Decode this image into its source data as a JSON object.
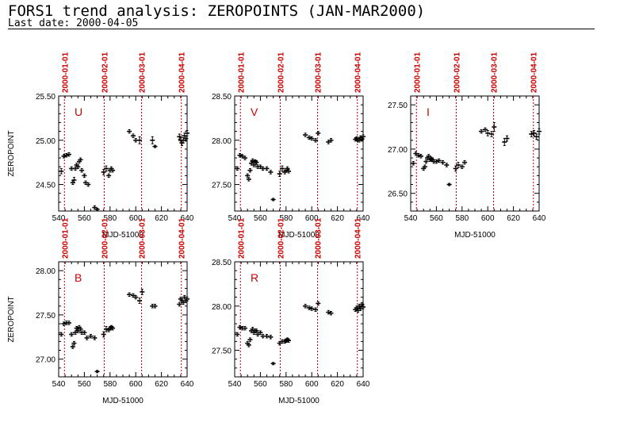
{
  "header": {
    "title": "FORS1 trend analysis: ZEROPOINTS (JAN-MAR2000)",
    "subtitle": "Last date: 2000-04-05"
  },
  "colors": {
    "date_marker": "#cc0000",
    "band_label": "#cc0000",
    "points": "#000000"
  },
  "chart_data": [
    {
      "type": "scatter",
      "band": "U",
      "xlabel": "MJD-51000",
      "ylabel": "ZEROPOINT",
      "xlim": [
        540,
        640
      ],
      "ylim": [
        24.2,
        25.5
      ],
      "xticks": [
        "540",
        "560",
        "580",
        "600",
        "620",
        "640"
      ],
      "yticks": [
        "24.50",
        "25.00",
        "25.50"
      ],
      "date_markers": [
        {
          "label": "2000-01-01",
          "x": 544.5
        },
        {
          "label": "2000-02-01",
          "x": 575.5
        },
        {
          "label": "2000-03-01",
          "x": 604.5
        },
        {
          "label": "2000-04-01",
          "x": 635.5
        }
      ],
      "x": [
        542,
        544,
        546,
        548,
        550,
        551,
        552,
        553,
        554,
        555,
        556,
        557,
        558,
        560,
        561,
        563,
        568,
        570,
        575,
        577,
        579,
        580,
        581,
        582,
        595,
        598,
        600,
        603,
        613,
        615,
        634,
        635,
        636,
        637,
        638,
        639,
        640
      ],
      "y": [
        24.65,
        24.82,
        24.83,
        24.84,
        24.68,
        24.52,
        24.55,
        24.68,
        24.72,
        24.7,
        24.76,
        24.78,
        24.66,
        24.6,
        24.52,
        24.5,
        24.24,
        24.22,
        24.64,
        24.68,
        24.6,
        24.66,
        24.68,
        24.66,
        25.1,
        25.05,
        25.0,
        25.0,
        25.0,
        24.93,
        25.04,
        25.0,
        24.97,
        25.0,
        25.05,
        25.02,
        25.08
      ],
      "err": [
        0.03,
        0.02,
        0.02,
        0.02,
        0.02,
        0.02,
        0.03,
        0.02,
        0.02,
        0.02,
        0.02,
        0.02,
        0.02,
        0.02,
        0.02,
        0.02,
        0.02,
        0.01,
        0.03,
        0.03,
        0.02,
        0.02,
        0.02,
        0.02,
        0.02,
        0.02,
        0.02,
        0.04,
        0.04,
        0.01,
        0.03,
        0.03,
        0.03,
        0.03,
        0.03,
        0.03,
        0.03
      ]
    },
    {
      "type": "scatter",
      "band": "V",
      "xlabel": "MJD-51000",
      "ylabel": "",
      "xlim": [
        540,
        640
      ],
      "ylim": [
        27.2,
        28.5
      ],
      "xticks": [
        "540",
        "560",
        "580",
        "600",
        "620",
        "640"
      ],
      "yticks": [
        "27.50",
        "28.00",
        "28.50"
      ],
      "date_markers": [
        {
          "label": "2000-01-01",
          "x": 544.5
        },
        {
          "label": "2000-02-01",
          "x": 575.5
        },
        {
          "label": "2000-03-01",
          "x": 604.5
        },
        {
          "label": "2000-04-01",
          "x": 635.5
        }
      ],
      "x": [
        542,
        544,
        546,
        548,
        550,
        551,
        552,
        553,
        554,
        555,
        556,
        557,
        558,
        560,
        562,
        565,
        568,
        570,
        575,
        577,
        579,
        580,
        581,
        582,
        595,
        598,
        600,
        603,
        605,
        613,
        615,
        634,
        635,
        636,
        637,
        638,
        639,
        640
      ],
      "y": [
        27.68,
        27.83,
        27.82,
        27.8,
        27.6,
        27.56,
        27.66,
        27.74,
        27.77,
        27.72,
        27.76,
        27.75,
        27.7,
        27.7,
        27.68,
        27.68,
        27.64,
        27.33,
        27.62,
        27.68,
        27.64,
        27.66,
        27.68,
        27.65,
        28.06,
        28.03,
        28.02,
        28.0,
        28.08,
        27.98,
        28.0,
        28.01,
        28.02,
        28.0,
        28.0,
        28.03,
        28.01,
        28.04
      ],
      "err": [
        0.02,
        0.02,
        0.02,
        0.02,
        0.02,
        0.02,
        0.02,
        0.02,
        0.02,
        0.02,
        0.02,
        0.02,
        0.02,
        0.02,
        0.02,
        0.02,
        0.02,
        0.01,
        0.03,
        0.03,
        0.02,
        0.02,
        0.02,
        0.02,
        0.02,
        0.02,
        0.02,
        0.02,
        0.02,
        0.02,
        0.02,
        0.02,
        0.02,
        0.02,
        0.02,
        0.02,
        0.02,
        0.02
      ]
    },
    {
      "type": "scatter",
      "band": "I",
      "xlabel": "MJD-51000",
      "ylabel": "",
      "xlim": [
        540,
        640
      ],
      "ylim": [
        26.3,
        27.6
      ],
      "xticks": [
        "540",
        "560",
        "580",
        "600",
        "620",
        "640"
      ],
      "yticks": [
        "26.50",
        "27.00",
        "27.50"
      ],
      "date_markers": [
        {
          "label": "2000-01-01",
          "x": 544.5
        },
        {
          "label": "2000-02-01",
          "x": 575.5
        },
        {
          "label": "2000-03-01",
          "x": 604.5
        },
        {
          "label": "2000-04-01",
          "x": 635.5
        }
      ],
      "x": [
        542,
        544,
        546,
        548,
        550,
        551,
        552,
        553,
        554,
        555,
        556,
        557,
        558,
        560,
        562,
        565,
        568,
        570,
        575,
        577,
        580,
        582,
        595,
        598,
        600,
        603,
        605,
        613,
        615,
        634,
        636,
        638,
        640
      ],
      "y": [
        26.84,
        26.95,
        26.93,
        26.92,
        26.78,
        26.8,
        26.86,
        26.9,
        26.92,
        26.88,
        26.89,
        26.88,
        26.86,
        26.86,
        26.87,
        26.85,
        26.82,
        26.6,
        26.78,
        26.82,
        26.8,
        26.85,
        27.2,
        27.22,
        27.18,
        27.17,
        27.25,
        27.08,
        27.12,
        27.17,
        27.18,
        27.14,
        27.2
      ],
      "err": [
        0.02,
        0.02,
        0.02,
        0.02,
        0.02,
        0.02,
        0.02,
        0.02,
        0.02,
        0.02,
        0.02,
        0.02,
        0.02,
        0.02,
        0.02,
        0.02,
        0.02,
        0.01,
        0.03,
        0.03,
        0.02,
        0.02,
        0.02,
        0.02,
        0.03,
        0.03,
        0.05,
        0.04,
        0.03,
        0.03,
        0.03,
        0.03,
        0.03
      ]
    },
    {
      "type": "scatter",
      "band": "B",
      "xlabel": "MJD-51000",
      "ylabel": "ZEROPOINT",
      "xlim": [
        540,
        640
      ],
      "ylim": [
        26.8,
        28.1
      ],
      "xticks": [
        "540",
        "560",
        "580",
        "600",
        "620",
        "640"
      ],
      "yticks": [
        "27.00",
        "27.50",
        "28.00"
      ],
      "date_markers": [
        {
          "label": "2000-01-01",
          "x": 544.5
        },
        {
          "label": "2000-02-01",
          "x": 575.5
        },
        {
          "label": "2000-03-01",
          "x": 604.5
        },
        {
          "label": "2000-04-01",
          "x": 635.5
        }
      ],
      "x": [
        542,
        544,
        546,
        548,
        550,
        551,
        552,
        553,
        554,
        555,
        556,
        557,
        558,
        560,
        562,
        565,
        568,
        570,
        575,
        577,
        579,
        580,
        581,
        582,
        595,
        598,
        600,
        603,
        605,
        613,
        615,
        634,
        635,
        636,
        637,
        638,
        639,
        640
      ],
      "y": [
        27.28,
        27.4,
        27.41,
        27.41,
        27.28,
        27.14,
        27.18,
        27.3,
        27.35,
        27.32,
        27.36,
        27.34,
        27.3,
        27.3,
        27.24,
        27.26,
        27.24,
        26.86,
        27.28,
        27.34,
        27.33,
        27.35,
        27.36,
        27.35,
        27.73,
        27.72,
        27.7,
        27.66,
        27.76,
        27.6,
        27.6,
        27.62,
        27.68,
        27.66,
        27.64,
        27.7,
        27.66,
        27.68
      ],
      "err": [
        0.02,
        0.02,
        0.02,
        0.02,
        0.02,
        0.02,
        0.02,
        0.02,
        0.02,
        0.02,
        0.02,
        0.02,
        0.02,
        0.02,
        0.02,
        0.02,
        0.02,
        0.01,
        0.03,
        0.03,
        0.02,
        0.02,
        0.02,
        0.02,
        0.02,
        0.02,
        0.02,
        0.03,
        0.03,
        0.02,
        0.02,
        0.02,
        0.02,
        0.02,
        0.02,
        0.02,
        0.02,
        0.02
      ]
    },
    {
      "type": "scatter",
      "band": "R",
      "xlabel": "MJD-51000",
      "ylabel": "",
      "xlim": [
        540,
        640
      ],
      "ylim": [
        27.2,
        28.5
      ],
      "xticks": [
        "540",
        "560",
        "580",
        "600",
        "620",
        "640"
      ],
      "yticks": [
        "27.50",
        "28.00",
        "28.50"
      ],
      "date_markers": [
        {
          "label": "2000-01-01",
          "x": 544.5
        },
        {
          "label": "2000-02-01",
          "x": 575.5
        },
        {
          "label": "2000-03-01",
          "x": 604.5
        },
        {
          "label": "2000-04-01",
          "x": 635.5
        }
      ],
      "x": [
        542,
        544,
        546,
        548,
        550,
        551,
        552,
        553,
        554,
        555,
        556,
        557,
        558,
        560,
        562,
        565,
        568,
        570,
        575,
        577,
        579,
        580,
        581,
        582,
        595,
        598,
        600,
        603,
        605,
        613,
        615,
        634,
        635,
        636,
        637,
        638,
        639,
        640
      ],
      "y": [
        27.68,
        27.76,
        27.75,
        27.75,
        27.58,
        27.56,
        27.62,
        27.72,
        27.74,
        27.7,
        27.72,
        27.72,
        27.68,
        27.7,
        27.66,
        27.66,
        27.65,
        27.35,
        27.58,
        27.6,
        27.6,
        27.61,
        27.62,
        27.61,
        28.0,
        27.98,
        27.97,
        27.96,
        28.03,
        27.93,
        27.92,
        27.96,
        27.98,
        27.95,
        28.0,
        27.97,
        28.02,
        27.99
      ],
      "err": [
        0.02,
        0.02,
        0.02,
        0.02,
        0.02,
        0.02,
        0.02,
        0.02,
        0.02,
        0.02,
        0.02,
        0.02,
        0.02,
        0.02,
        0.02,
        0.02,
        0.02,
        0.01,
        0.02,
        0.02,
        0.02,
        0.02,
        0.02,
        0.02,
        0.02,
        0.02,
        0.02,
        0.02,
        0.02,
        0.02,
        0.02,
        0.02,
        0.02,
        0.02,
        0.02,
        0.02,
        0.02,
        0.02
      ]
    }
  ]
}
